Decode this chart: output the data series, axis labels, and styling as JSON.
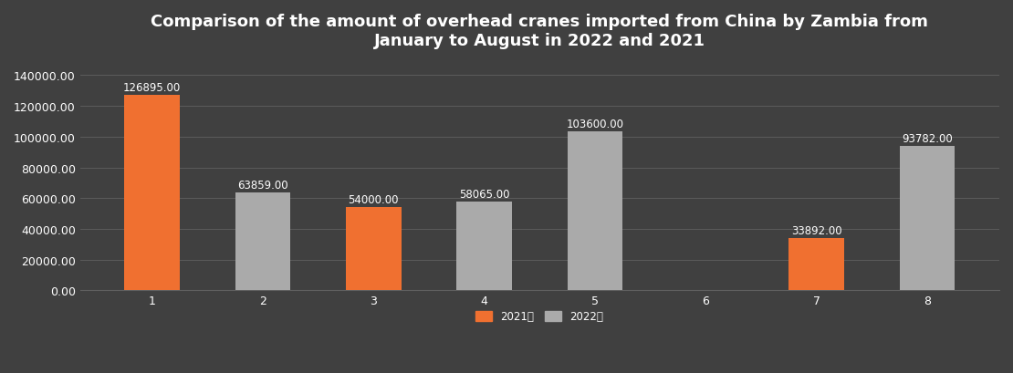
{
  "title": "Comparison of the amount of overhead cranes imported from China by Zambia from\nJanuary to August in 2022 and 2021",
  "months": [
    1,
    2,
    3,
    4,
    5,
    6,
    7,
    8
  ],
  "data_2021": [
    126895.0,
    0,
    54000.0,
    0,
    0,
    0,
    33892.0,
    0
  ],
  "data_2022": [
    0,
    63859.0,
    0,
    58065.0,
    103600.0,
    0,
    0,
    93782.0
  ],
  "color_2021": "#F07030",
  "color_2022": "#AAAAAA",
  "background_color": "#404040",
  "text_color": "#ffffff",
  "grid_color": "#606060",
  "title_fontsize": 13,
  "tick_fontsize": 9,
  "label_fontsize": 8.5,
  "ylim": [
    0,
    150000
  ],
  "yticks": [
    0,
    20000,
    40000,
    60000,
    80000,
    100000,
    120000,
    140000
  ],
  "legend_2021": "2021年",
  "legend_2022": "2022年",
  "bar_width": 0.5
}
